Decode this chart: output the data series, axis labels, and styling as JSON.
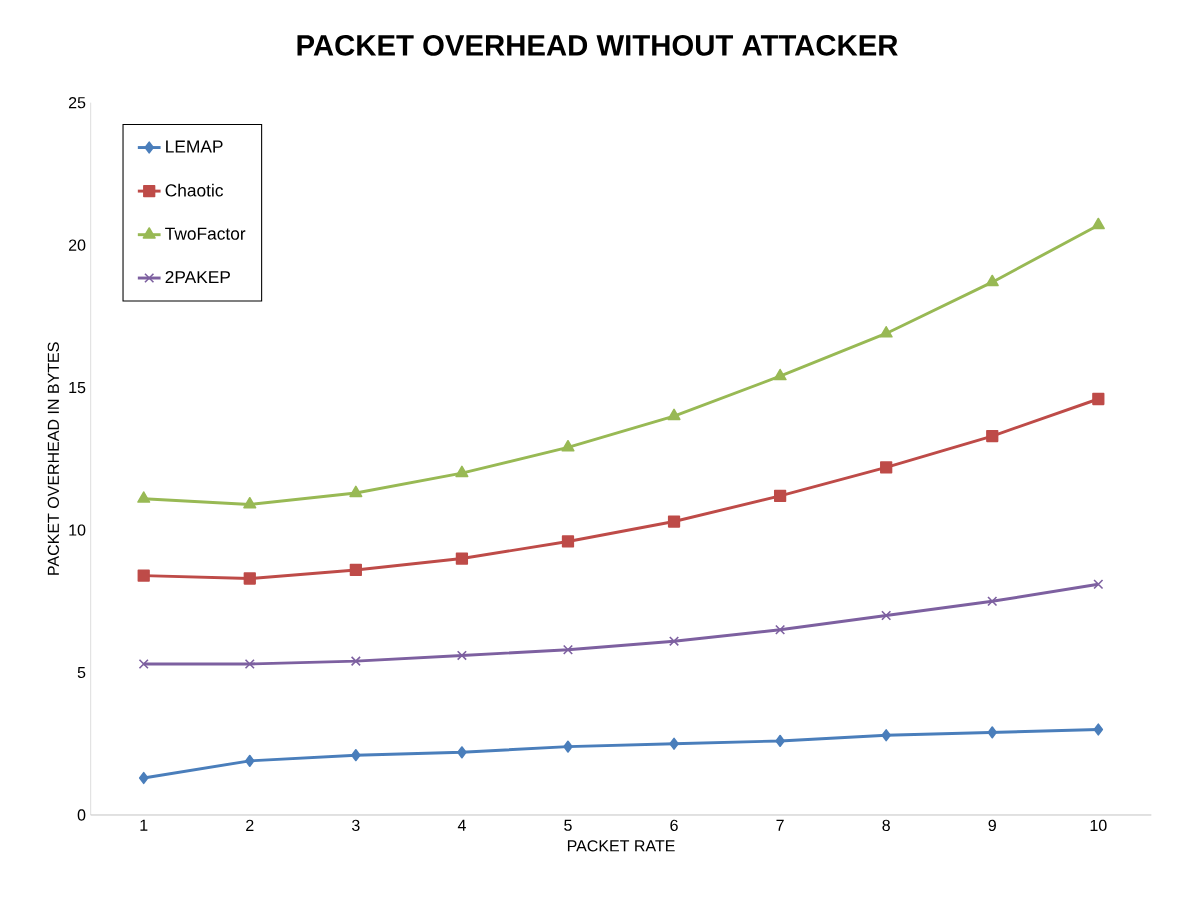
{
  "chart_data": {
    "type": "line",
    "title": "PACKET OVERHEAD WITHOUT ATTACKER",
    "xlabel": "PACKET RATE",
    "ylabel": "PACKET OVERHEAD IN BYTES",
    "categories": [
      "1",
      "2",
      "3",
      "4",
      "5",
      "6",
      "7",
      "8",
      "9",
      "10"
    ],
    "series": [
      {
        "name": "LEMAP",
        "color": "#4a7ebb",
        "marker": "diamond",
        "values": [
          1.3,
          1.9,
          2.1,
          2.2,
          2.4,
          2.5,
          2.6,
          2.8,
          2.9,
          3.0
        ]
      },
      {
        "name": "Chaotic",
        "color": "#be4b48",
        "marker": "square",
        "values": [
          8.4,
          8.3,
          8.6,
          9.0,
          9.6,
          10.3,
          11.2,
          12.2,
          13.3,
          14.6
        ]
      },
      {
        "name": "TwoFactor",
        "color": "#98b954",
        "marker": "triangle",
        "values": [
          11.1,
          10.9,
          11.3,
          12.0,
          12.9,
          14.0,
          15.4,
          16.9,
          18.7,
          20.7
        ]
      },
      {
        "name": "2PAKEP",
        "color": "#7d60a0",
        "marker": "cross",
        "values": [
          5.3,
          5.3,
          5.4,
          5.6,
          5.8,
          6.1,
          6.5,
          7.0,
          7.5,
          8.1
        ]
      }
    ],
    "ylim": [
      0,
      25
    ],
    "yticks": [
      0,
      5,
      10,
      15,
      20,
      25
    ],
    "grid": false,
    "legend": "top left",
    "line_style": "solid"
  }
}
